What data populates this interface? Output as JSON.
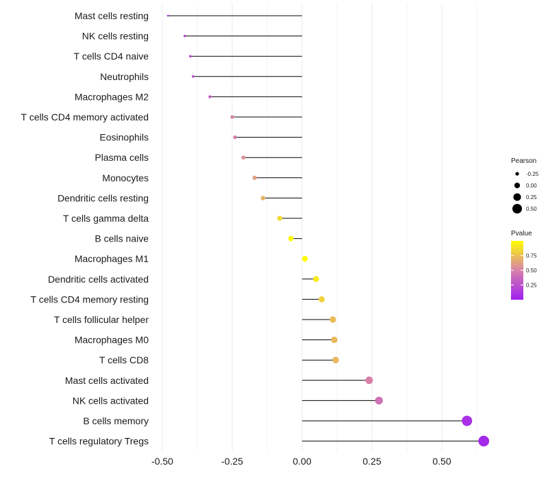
{
  "chart_data": {
    "type": "lollipop",
    "xlim": [
      -0.5,
      0.7
    ],
    "x_ticks": [
      -0.5,
      -0.25,
      0.0,
      0.25,
      0.5
    ],
    "x_tick_labels": [
      "-0.50",
      "-0.25",
      "0.00",
      "0.25",
      "0.50"
    ],
    "baseline": 0,
    "categories": [
      "Mast cells resting",
      "NK cells resting",
      "T cells CD4 naive",
      "Neutrophils",
      "Macrophages M2",
      "T cells CD4 memory activated",
      "Eosinophils",
      "Plasma cells",
      "Monocytes",
      "Dendritic cells resting",
      "T cells gamma delta",
      "B cells naive",
      "Macrophages M1",
      "Dendritic cells activated",
      "T cells CD4 memory resting",
      "T cells follicular helper",
      "Macrophages M0",
      "T cells CD8",
      "Mast cells activated",
      "NK cells activated",
      "B cells memory",
      "T cells regulatory  Tregs"
    ],
    "pearson": [
      -0.48,
      -0.42,
      -0.4,
      -0.39,
      -0.33,
      -0.25,
      -0.24,
      -0.21,
      -0.17,
      -0.14,
      -0.08,
      -0.04,
      0.01,
      0.05,
      0.07,
      0.11,
      0.115,
      0.12,
      0.24,
      0.275,
      0.59,
      0.65
    ],
    "pvalue": [
      0.04,
      0.15,
      0.18,
      0.2,
      0.3,
      0.5,
      0.48,
      0.55,
      0.62,
      0.7,
      0.85,
      0.97,
      0.99,
      0.92,
      0.82,
      0.74,
      0.72,
      0.72,
      0.5,
      0.42,
      0.08,
      0.04
    ],
    "size_legend": {
      "title": "Pearson",
      "labels": [
        "-0.25",
        "0.00",
        "0.25",
        "0.50"
      ],
      "values": [
        -0.25,
        0.0,
        0.25,
        0.5
      ]
    },
    "color_legend": {
      "title": "Pvalue",
      "labels": [
        "0.75",
        "0.50",
        "0.25"
      ],
      "values": [
        0.75,
        0.5,
        0.25
      ],
      "range": [
        0.0,
        1.0
      ],
      "low_color": "#a020f0",
      "mid_color": "#d781aa",
      "high_color": "#ffff00"
    },
    "stem_color": "#000000",
    "grid_color": "#ebebeb",
    "grid": true
  }
}
